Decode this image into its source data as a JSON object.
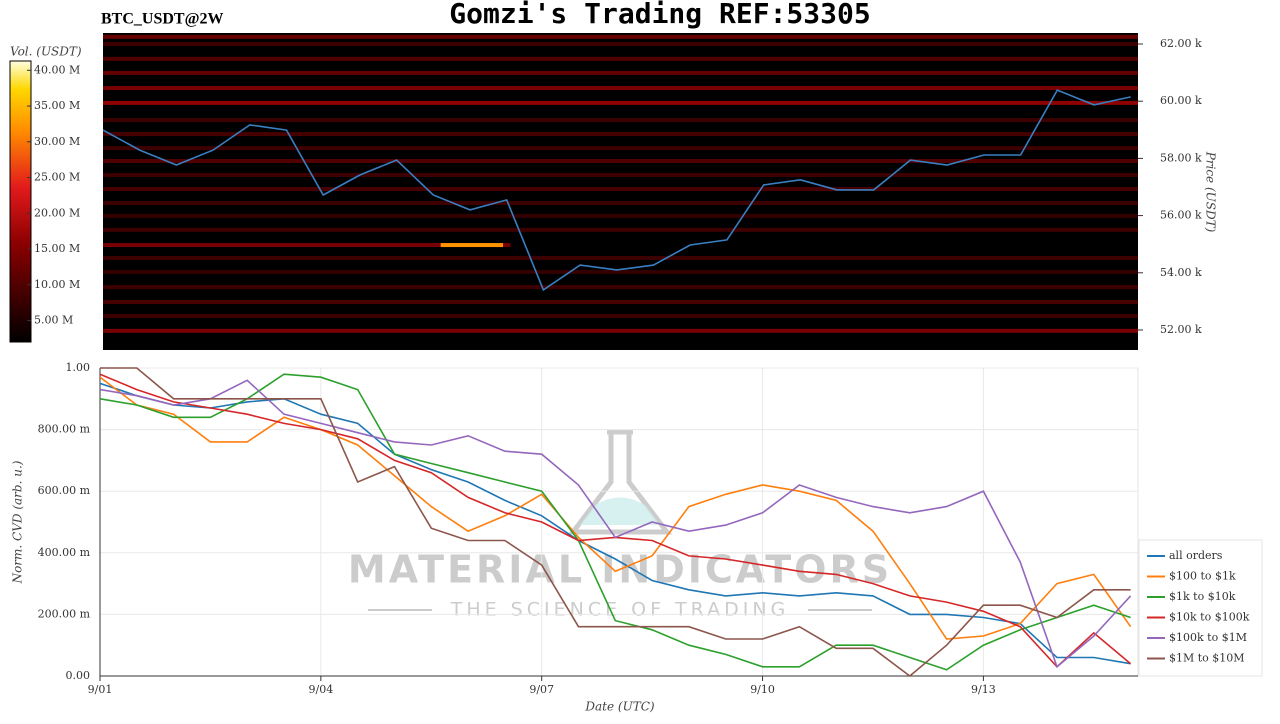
{
  "header": "BTC_USDT@2W",
  "title": "Gomzi's Trading REF:53305",
  "watermark": {
    "title": "MATERIAL INDICATORS",
    "subtitle": "THE SCIENCE OF TRADING"
  },
  "chart_data": [
    {
      "type": "line",
      "ylabel": "Price (USDT)",
      "xlim": [
        0,
        14.1
      ],
      "ylim": [
        51300,
        62385
      ],
      "yticks": [
        {
          "value": 52000,
          "label": "52.00 k"
        },
        {
          "value": 54000,
          "label": "54.00 k"
        },
        {
          "value": 56000,
          "label": "56.00 k"
        },
        {
          "value": 58000,
          "label": "58.00 k"
        },
        {
          "value": 60000,
          "label": "60.00 k"
        },
        {
          "value": 62000,
          "label": "62.00 k"
        }
      ],
      "x": [
        0,
        0.5,
        1,
        1.5,
        2,
        2.5,
        3,
        3.5,
        4,
        4.5,
        5,
        5.5,
        6,
        6.5,
        7,
        7.5,
        8,
        8.5,
        9,
        9.5,
        10,
        10.5,
        11,
        11.5,
        12,
        12.5,
        13,
        13.5,
        14
      ],
      "series": [
        {
          "color": "#3a7fc1",
          "values": [
            58990,
            58290,
            57770,
            58290,
            59170,
            58990,
            56720,
            57420,
            57940,
            56720,
            56200,
            56550,
            53400,
            54270,
            54100,
            54270,
            54970,
            55150,
            57070,
            57250,
            56900,
            56900,
            57940,
            57770,
            58120,
            58120,
            60390,
            59870,
            60150
          ]
        }
      ],
      "colorbar": {
        "label": "Vol. (USDT)",
        "lim": [
          2000000,
          41300000
        ],
        "ticks": [
          {
            "value": 5000000,
            "label": "5.00 M"
          },
          {
            "value": 10000000,
            "label": "10.00 M"
          },
          {
            "value": 15000000,
            "label": "15.00 M"
          },
          {
            "value": 20000000,
            "label": "20.00 M"
          },
          {
            "value": 25000000,
            "label": "25.00 M"
          },
          {
            "value": 30000000,
            "label": "30.00 M"
          },
          {
            "value": 35000000,
            "label": "35.00 M"
          },
          {
            "value": 40000000,
            "label": "40.00 M"
          }
        ]
      },
      "heatmap": [
        {
          "price": 62250,
          "volume": 12000000,
          "x": [
            0,
            14.1
          ]
        },
        {
          "price": 62000,
          "volume": 8000000,
          "x": [
            0,
            14.1
          ]
        },
        {
          "price": 61480,
          "volume": 10000000,
          "x": [
            0,
            14.1
          ]
        },
        {
          "price": 60990,
          "volume": 12000000,
          "x": [
            0,
            14.1
          ]
        },
        {
          "price": 60460,
          "volume": 14000000,
          "x": [
            0,
            14.1
          ]
        },
        {
          "price": 59940,
          "volume": 16000000,
          "x": [
            0,
            14.1
          ]
        },
        {
          "price": 59340,
          "volume": 8000000,
          "x": [
            0,
            14.1
          ]
        },
        {
          "price": 58850,
          "volume": 9000000,
          "x": [
            0,
            14.1
          ]
        },
        {
          "price": 58360,
          "volume": 8000000,
          "x": [
            0,
            14.1
          ]
        },
        {
          "price": 57910,
          "volume": 10000000,
          "x": [
            0,
            14.1
          ]
        },
        {
          "price": 57420,
          "volume": 8000000,
          "x": [
            0,
            14.1
          ]
        },
        {
          "price": 56930,
          "volume": 9000000,
          "x": [
            0,
            14.1
          ]
        },
        {
          "price": 56440,
          "volume": 8000000,
          "x": [
            0,
            14.1
          ]
        },
        {
          "price": 55990,
          "volume": 7000000,
          "x": [
            0,
            14.1
          ]
        },
        {
          "price": 55500,
          "volume": 8000000,
          "x": [
            0,
            14.1
          ]
        },
        {
          "price": 54970,
          "volume": 14000000,
          "x": [
            0,
            5.55
          ]
        },
        {
          "price": 54970,
          "volume": 32000000,
          "x": [
            4.6,
            5.45
          ]
        },
        {
          "price": 54520,
          "volume": 8000000,
          "x": [
            0,
            14.1
          ]
        },
        {
          "price": 54030,
          "volume": 7000000,
          "x": [
            0,
            14.1
          ]
        },
        {
          "price": 53500,
          "volume": 8000000,
          "x": [
            0,
            14.1
          ]
        },
        {
          "price": 52980,
          "volume": 9000000,
          "x": [
            0,
            14.1
          ]
        },
        {
          "price": 52490,
          "volume": 8000000,
          "x": [
            0,
            14.1
          ]
        },
        {
          "price": 51970,
          "volume": 14000000,
          "x": [
            0,
            14.1
          ]
        }
      ]
    },
    {
      "type": "line",
      "xlabel": "Date (UTC)",
      "ylabel": "Norm. CVD (arb. u.)",
      "xlim": [
        0,
        14.1
      ],
      "ylim": [
        0,
        1
      ],
      "grid": true,
      "legend": "right",
      "xticks": [
        {
          "value": 0,
          "label": "9/01"
        },
        {
          "value": 3,
          "label": "9/04"
        },
        {
          "value": 6,
          "label": "9/07"
        },
        {
          "value": 9,
          "label": "9/10"
        },
        {
          "value": 12,
          "label": "9/13"
        }
      ],
      "yticks": [
        {
          "value": 0,
          "label": "0.00"
        },
        {
          "value": 0.2,
          "label": "200.00 m"
        },
        {
          "value": 0.4,
          "label": "400.00 m"
        },
        {
          "value": 0.6,
          "label": "600.00 m"
        },
        {
          "value": 0.8,
          "label": "800.00 m"
        },
        {
          "value": 1,
          "label": "1.00"
        }
      ],
      "x": [
        0,
        0.5,
        1,
        1.5,
        2,
        2.5,
        3,
        3.5,
        4,
        4.5,
        5,
        5.5,
        6,
        6.5,
        7,
        7.5,
        8,
        8.5,
        9,
        9.5,
        10,
        10.5,
        11,
        11.5,
        12,
        12.5,
        13,
        13.5,
        14
      ],
      "series": [
        {
          "name": "all orders",
          "color": "#1f77b4",
          "values": [
            0.95,
            0.91,
            0.88,
            0.87,
            0.89,
            0.9,
            0.85,
            0.82,
            0.72,
            0.67,
            0.63,
            0.57,
            0.52,
            0.44,
            0.38,
            0.31,
            0.28,
            0.26,
            0.27,
            0.26,
            0.27,
            0.26,
            0.2,
            0.2,
            0.19,
            0.17,
            0.06,
            0.06,
            0.04
          ]
        },
        {
          "name": "$100 to $1k",
          "color": "#ff7f0e",
          "values": [
            0.97,
            0.88,
            0.85,
            0.76,
            0.76,
            0.84,
            0.8,
            0.75,
            0.65,
            0.55,
            0.47,
            0.52,
            0.59,
            0.45,
            0.34,
            0.39,
            0.55,
            0.59,
            0.62,
            0.6,
            0.57,
            0.47,
            0.3,
            0.12,
            0.13,
            0.17,
            0.3,
            0.33,
            0.16
          ]
        },
        {
          "name": "$1k to $10k",
          "color": "#2ca02c",
          "values": [
            0.9,
            0.88,
            0.84,
            0.84,
            0.9,
            0.98,
            0.97,
            0.93,
            0.72,
            0.69,
            0.66,
            0.63,
            0.6,
            0.44,
            0.18,
            0.15,
            0.1,
            0.07,
            0.03,
            0.03,
            0.1,
            0.1,
            0.06,
            0.02,
            0.1,
            0.15,
            0.19,
            0.23,
            0.19
          ]
        },
        {
          "name": "$10k to $100k",
          "color": "#d62728",
          "values": [
            0.98,
            0.93,
            0.89,
            0.87,
            0.85,
            0.82,
            0.8,
            0.77,
            0.7,
            0.66,
            0.58,
            0.53,
            0.5,
            0.44,
            0.45,
            0.44,
            0.39,
            0.38,
            0.36,
            0.34,
            0.33,
            0.3,
            0.26,
            0.24,
            0.21,
            0.16,
            0.03,
            0.14,
            0.04
          ]
        },
        {
          "name": "$100k to $1M",
          "color": "#9467bd",
          "values": [
            0.93,
            0.91,
            0.88,
            0.9,
            0.96,
            0.85,
            0.82,
            0.79,
            0.76,
            0.75,
            0.78,
            0.73,
            0.72,
            0.62,
            0.45,
            0.5,
            0.47,
            0.49,
            0.53,
            0.62,
            0.58,
            0.55,
            0.53,
            0.55,
            0.6,
            0.37,
            0.03,
            0.13,
            0.26
          ]
        },
        {
          "name": "$1M to $10M",
          "color": "#8c564b",
          "values": [
            1,
            1,
            0.9,
            0.9,
            0.9,
            0.9,
            0.9,
            0.63,
            0.68,
            0.48,
            0.44,
            0.44,
            0.36,
            0.16,
            0.16,
            0.16,
            0.16,
            0.12,
            0.12,
            0.16,
            0.09,
            0.09,
            0,
            0.1,
            0.23,
            0.23,
            0.19,
            0.28,
            0.28
          ]
        }
      ]
    }
  ]
}
